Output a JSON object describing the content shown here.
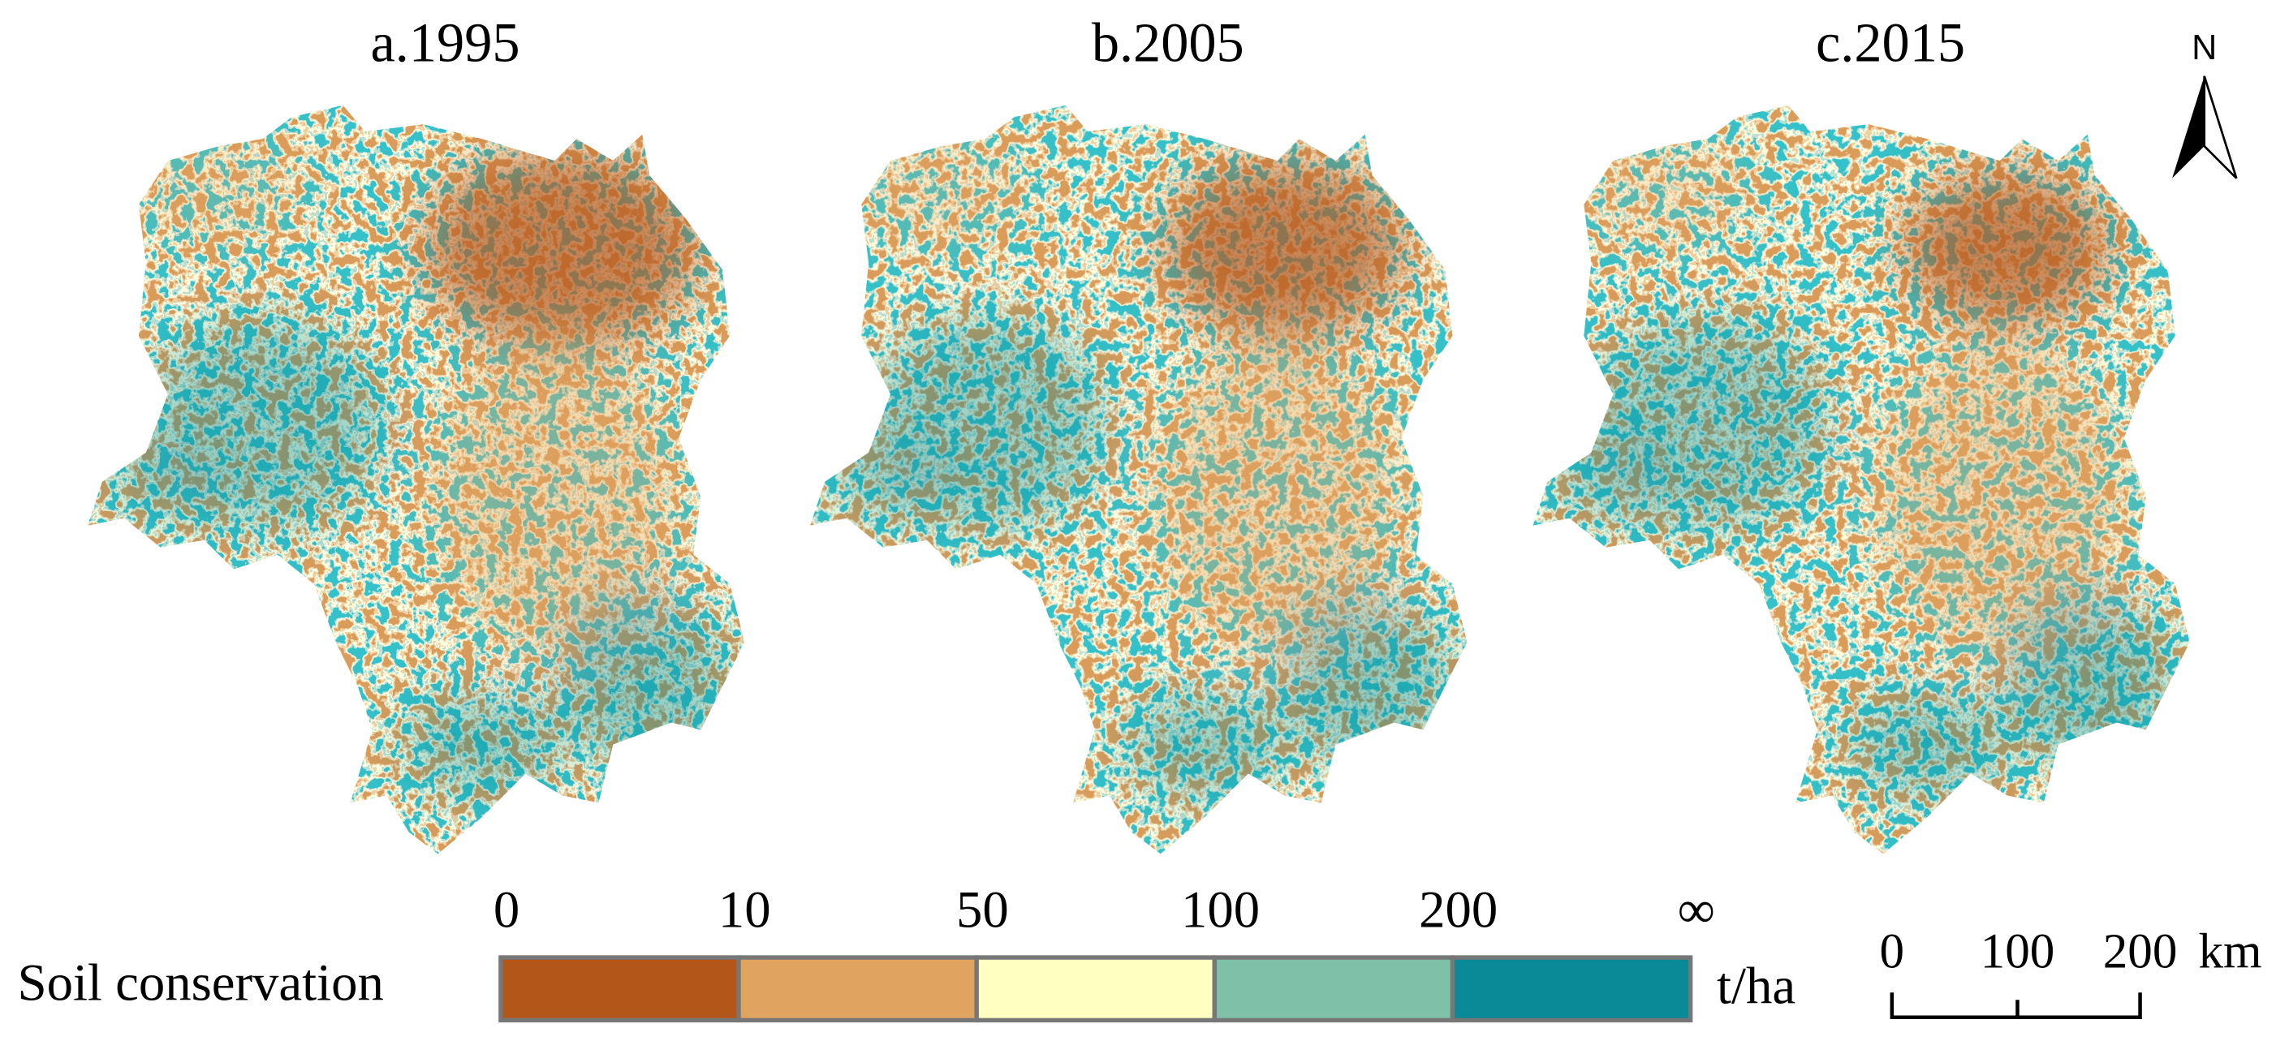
{
  "panels": [
    {
      "title": "a.1995"
    },
    {
      "title": "b.2005"
    },
    {
      "title": "c.2015"
    }
  ],
  "north": "N",
  "legend": {
    "title": "Soil conservation",
    "breaks": [
      "0",
      "10",
      "50",
      "100",
      "200",
      "∞"
    ],
    "colors": [
      "#b3561a",
      "#e0a460",
      "#ffffc2",
      "#7fc0a8",
      "#0a8996"
    ],
    "unit": "t/ha"
  },
  "scale_bar": {
    "labels": [
      "0",
      "100",
      "200"
    ],
    "unit": "km"
  }
}
